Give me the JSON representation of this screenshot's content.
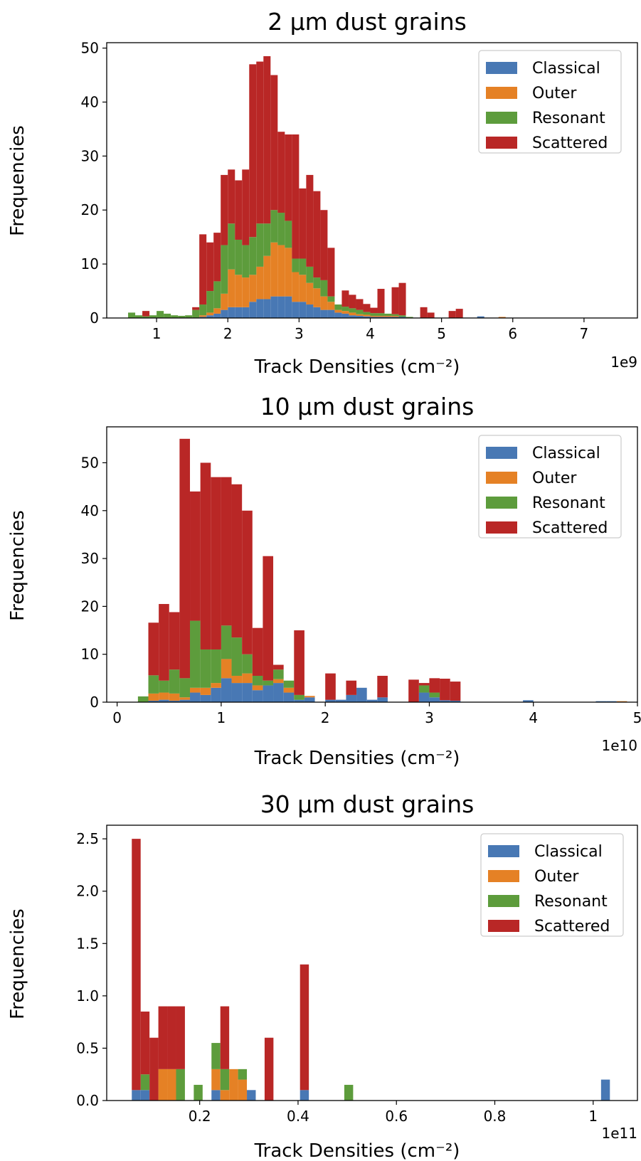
{
  "colors": {
    "Classical": "#4878b4",
    "Outer": "#e58125",
    "Resonant": "#5d9c3c",
    "Scattered": "#b92726"
  },
  "chart_data": [
    {
      "type": "bar",
      "stacked": true,
      "title": "2 μm dust grains",
      "xlabel": "Track Densities (cm⁻²)",
      "ylabel": "Frequencies",
      "x_offset_label": "1e9",
      "xlim": [
        0.3,
        7.75
      ],
      "ylim": [
        0,
        51
      ],
      "xticks": [
        1,
        2,
        3,
        4,
        5,
        6,
        7
      ],
      "yticks": [
        0,
        10,
        20,
        30,
        40,
        50
      ],
      "legend_position": "top-right",
      "bin_edges": [
        0.6,
        0.7,
        0.8,
        0.9,
        1.0,
        1.1,
        1.2,
        1.3,
        1.4,
        1.5,
        1.6,
        1.7,
        1.8,
        1.9,
        2.0,
        2.1,
        2.2,
        2.3,
        2.4,
        2.5,
        2.6,
        2.7,
        2.8,
        2.9,
        3.0,
        3.1,
        3.2,
        3.3,
        3.4,
        3.5,
        3.6,
        3.7,
        3.8,
        3.9,
        4.0,
        4.1,
        4.2,
        4.3,
        4.4,
        4.5,
        4.6,
        4.7,
        4.8,
        4.9,
        5.0,
        5.1,
        5.2,
        5.3,
        5.4,
        5.5,
        5.6,
        5.7,
        5.8,
        5.9,
        6.0,
        6.1
      ],
      "series": [
        {
          "name": "Classical",
          "values": [
            0,
            0,
            0,
            0,
            0,
            0,
            0,
            0,
            0,
            0,
            0.2,
            0.5,
            0.8,
            1.5,
            2,
            2,
            2,
            3,
            3.5,
            3.5,
            4,
            4,
            4,
            3,
            3,
            2.5,
            2,
            1.5,
            1.5,
            1,
            0.8,
            0.5,
            0.4,
            0.3,
            0.2,
            0.2,
            0.2,
            0.2,
            0.2,
            0,
            0,
            0,
            0,
            0,
            0,
            0,
            0,
            0,
            0,
            0.3,
            0,
            0,
            0,
            0,
            0,
            0
          ]
        },
        {
          "name": "Outer",
          "values": [
            0,
            0,
            0,
            0,
            0,
            0,
            0,
            0,
            0,
            0,
            0.3,
            0.5,
            1,
            3,
            7,
            6,
            5.5,
            5,
            6,
            8,
            10,
            9.5,
            9,
            5.5,
            5,
            4,
            3.5,
            2.5,
            1.5,
            0.5,
            0.5,
            0.5,
            0.3,
            0.3,
            0.2,
            0.2,
            0.2,
            0.2,
            0,
            0,
            0,
            0,
            0,
            0,
            0,
            0,
            0,
            0,
            0,
            0,
            0,
            0,
            0.2,
            0,
            0,
            0
          ]
        },
        {
          "name": "Resonant",
          "values": [
            1,
            0.5,
            0.3,
            0.5,
            1.3,
            0.8,
            0.5,
            0.4,
            0.5,
            1.5,
            2,
            4,
            5,
            9,
            8.5,
            6.5,
            6,
            7,
            8,
            6,
            6,
            6,
            5,
            2.5,
            3,
            3,
            2,
            3,
            1,
            1,
            0.8,
            0.8,
            0.8,
            0.5,
            0.5,
            0.5,
            0.4,
            0.3,
            0.3,
            0.2,
            0,
            0,
            0,
            0,
            0,
            0,
            0,
            0,
            0,
            0,
            0,
            0,
            0,
            0,
            0,
            0
          ]
        },
        {
          "name": "Scattered",
          "values": [
            0,
            0,
            1,
            0,
            0,
            0,
            0,
            0,
            0,
            0.5,
            13,
            9,
            9,
            13,
            10,
            11,
            14,
            32,
            30,
            31,
            25,
            15,
            16,
            23,
            13,
            17,
            16,
            13,
            9,
            0,
            3,
            2.5,
            2,
            1.5,
            1,
            4.5,
            0,
            5,
            6,
            0,
            0,
            2,
            1,
            0,
            0,
            1.3,
            1.7,
            0,
            0,
            0,
            0,
            0,
            0,
            0,
            0,
            0.6
          ]
        }
      ]
    },
    {
      "type": "bar",
      "stacked": true,
      "title": "10 μm dust grains",
      "xlabel": "Track Densities (cm⁻²)",
      "ylabel": "Frequencies",
      "x_offset_label": "1e10",
      "xlim": [
        -0.1,
        5.0
      ],
      "ylim": [
        0,
        57.5
      ],
      "xticks": [
        0,
        1,
        2,
        3,
        4,
        5
      ],
      "yticks": [
        0,
        10,
        20,
        30,
        40,
        50
      ],
      "legend_position": "top-right",
      "bin_edges": [
        0.2,
        0.3,
        0.4,
        0.5,
        0.6,
        0.7,
        0.8,
        0.9,
        1.0,
        1.1,
        1.2,
        1.3,
        1.4,
        1.5,
        1.6,
        1.7,
        1.8,
        1.9,
        2.0,
        2.1,
        2.2,
        2.3,
        2.4,
        2.5,
        2.6,
        2.7,
        2.8,
        2.9,
        3.0,
        3.1,
        3.2,
        3.3,
        3.4,
        3.5,
        3.6,
        3.7,
        3.8,
        3.9,
        4.0,
        4.1,
        4.2,
        4.3,
        4.4,
        4.5,
        4.6,
        4.7,
        4.8,
        4.9
      ],
      "series": [
        {
          "name": "Classical",
          "values": [
            0,
            0.3,
            0.5,
            0.3,
            0.5,
            2,
            1.5,
            3,
            5,
            4,
            4,
            2.5,
            3.5,
            4,
            2,
            0.5,
            1,
            0,
            0.5,
            0.5,
            1.5,
            3,
            0.5,
            1,
            0,
            0,
            0,
            2,
            1,
            0.4,
            0.3,
            0,
            0,
            0,
            0,
            0,
            0,
            0.4,
            0,
            0,
            0,
            0,
            0,
            0,
            0.2,
            0.2,
            0,
            0
          ]
        },
        {
          "name": "Outer",
          "values": [
            0,
            1.5,
            1.5,
            1.5,
            0.5,
            1,
            1.5,
            1,
            4,
            1.5,
            2,
            1,
            0,
            0.8,
            1,
            0,
            0.3,
            0,
            0,
            0,
            0,
            0,
            0,
            0,
            0,
            0,
            0,
            0,
            0,
            0,
            0,
            0,
            0,
            0,
            0,
            0,
            0,
            0,
            0,
            0,
            0,
            0,
            0,
            0,
            0,
            0,
            0.2,
            0
          ]
        },
        {
          "name": "Resonant",
          "values": [
            1.2,
            3.8,
            2.5,
            5,
            4,
            14,
            8,
            7,
            7,
            8,
            4,
            2,
            1,
            2,
            1.5,
            1,
            0,
            0,
            0,
            0,
            0,
            0,
            0,
            0,
            0,
            0,
            0,
            1.5,
            1,
            0,
            0,
            0,
            0,
            0,
            0,
            0,
            0,
            0,
            0,
            0,
            0,
            0,
            0,
            0,
            0,
            0,
            0,
            0
          ]
        },
        {
          "name": "Scattered",
          "values": [
            0,
            11,
            16,
            12,
            50,
            27,
            39,
            36,
            31,
            32,
            30,
            10,
            26,
            1,
            0,
            13.5,
            0,
            0,
            5.5,
            0,
            3,
            0,
            0,
            4.5,
            0,
            0,
            4.7,
            0.5,
            3,
            4.5,
            4,
            0,
            0,
            0,
            0,
            0,
            0,
            0,
            0,
            0,
            0,
            0,
            0,
            0,
            0,
            0,
            0,
            0
          ]
        }
      ]
    },
    {
      "type": "bar",
      "stacked": true,
      "title": "30 μm dust grains",
      "xlabel": "Track Densities (cm⁻²)",
      "ylabel": "Frequencies",
      "x_offset_label": "1e11",
      "xlim": [
        0.011,
        1.09
      ],
      "ylim": [
        0,
        2.63
      ],
      "xticks": [
        0.2,
        0.4,
        0.6,
        0.8,
        1.0
      ],
      "ytick_labels": [
        "0.0",
        "0.5",
        "1.0",
        "1.5",
        "2.0",
        "2.5"
      ],
      "yticks": [
        0,
        0.5,
        1.0,
        1.5,
        2.0,
        2.5
      ],
      "legend_position": "top-right",
      "bin_edges": [
        0.062,
        0.08,
        0.098,
        0.116,
        0.134,
        0.152,
        0.17,
        0.188,
        0.206,
        0.224,
        0.242,
        0.26,
        0.278,
        0.296,
        0.314,
        0.332,
        0.35,
        0.368,
        0.386,
        0.404,
        0.422,
        0.44,
        0.458,
        0.476,
        0.494,
        0.512,
        0.53,
        0.548,
        0.566,
        0.584,
        0.602,
        0.62,
        0.638,
        0.656,
        0.674,
        0.692,
        0.71,
        0.728,
        0.746,
        0.764,
        0.782,
        0.8,
        0.818,
        0.836,
        0.854,
        0.872,
        0.89,
        0.908,
        0.926,
        0.944,
        0.962,
        0.98,
        0.998,
        1.016,
        1.034
      ],
      "series": [
        {
          "name": "Classical",
          "values": [
            0.1,
            0.1,
            0,
            0,
            0,
            0,
            0,
            0,
            0,
            0.1,
            0,
            0,
            0,
            0.1,
            0,
            0,
            0,
            0,
            0,
            0.1,
            0,
            0,
            0,
            0,
            0,
            0,
            0,
            0,
            0,
            0,
            0,
            0,
            0,
            0,
            0,
            0,
            0,
            0,
            0,
            0,
            0,
            0,
            0,
            0,
            0,
            0,
            0,
            0,
            0,
            0,
            0,
            0,
            0,
            0.2
          ]
        },
        {
          "name": "Outer",
          "values": [
            0,
            0,
            0,
            0.3,
            0.3,
            0,
            0,
            0,
            0,
            0.2,
            0.1,
            0.3,
            0.2,
            0,
            0,
            0,
            0,
            0,
            0,
            0,
            0,
            0,
            0,
            0,
            0,
            0,
            0,
            0,
            0,
            0,
            0,
            0,
            0,
            0,
            0,
            0,
            0,
            0,
            0,
            0,
            0,
            0,
            0,
            0,
            0,
            0,
            0,
            0,
            0,
            0,
            0,
            0,
            0,
            0
          ]
        },
        {
          "name": "Resonant",
          "values": [
            0,
            0.15,
            0,
            0,
            0,
            0.3,
            0,
            0.15,
            0,
            0.25,
            0.2,
            0,
            0.1,
            0,
            0,
            0,
            0,
            0,
            0,
            0,
            0,
            0,
            0,
            0,
            0.15,
            0,
            0,
            0,
            0,
            0,
            0,
            0,
            0,
            0,
            0,
            0,
            0,
            0,
            0,
            0,
            0,
            0,
            0,
            0,
            0,
            0,
            0,
            0,
            0,
            0,
            0,
            0,
            0,
            0
          ]
        },
        {
          "name": "Scattered",
          "values": [
            2.4,
            0.6,
            0.6,
            0.6,
            0.6,
            0.6,
            0,
            0,
            0,
            0,
            0.6,
            0,
            0,
            0,
            0,
            0.6,
            0,
            0,
            0,
            1.2,
            0,
            0,
            0,
            0,
            0,
            0,
            0,
            0,
            0,
            0,
            0,
            0,
            0,
            0,
            0,
            0,
            0,
            0,
            0,
            0,
            0,
            0,
            0,
            0,
            0,
            0,
            0,
            0,
            0,
            0,
            0,
            0,
            0,
            0
          ]
        }
      ]
    }
  ]
}
